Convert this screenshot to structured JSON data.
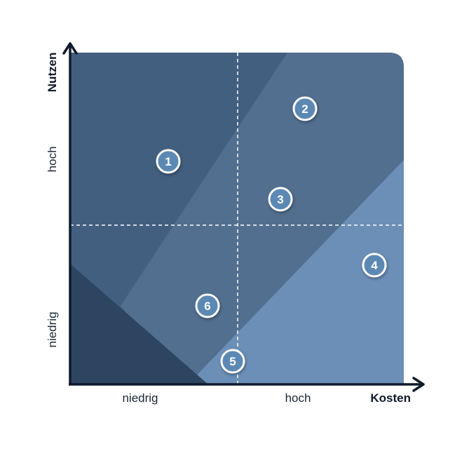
{
  "axes": {
    "x_title": "Kosten",
    "y_title": "Nutzen",
    "x_ticks": [
      "niedrig",
      "hoch"
    ],
    "y_ticks": [
      "niedrig",
      "hoch"
    ]
  },
  "colors": {
    "zone_top_left": "#425f80",
    "zone_middle": "#526f8f",
    "zone_bottom_right": "#6b8fb6",
    "zone_bottom_left": "#2d4560",
    "marker_fill": "#5b89b4",
    "axis": "#0f1a2b"
  },
  "markers": [
    {
      "label": "1"
    },
    {
      "label": "2"
    },
    {
      "label": "3"
    },
    {
      "label": "4"
    },
    {
      "label": "5"
    },
    {
      "label": "6"
    }
  ]
}
